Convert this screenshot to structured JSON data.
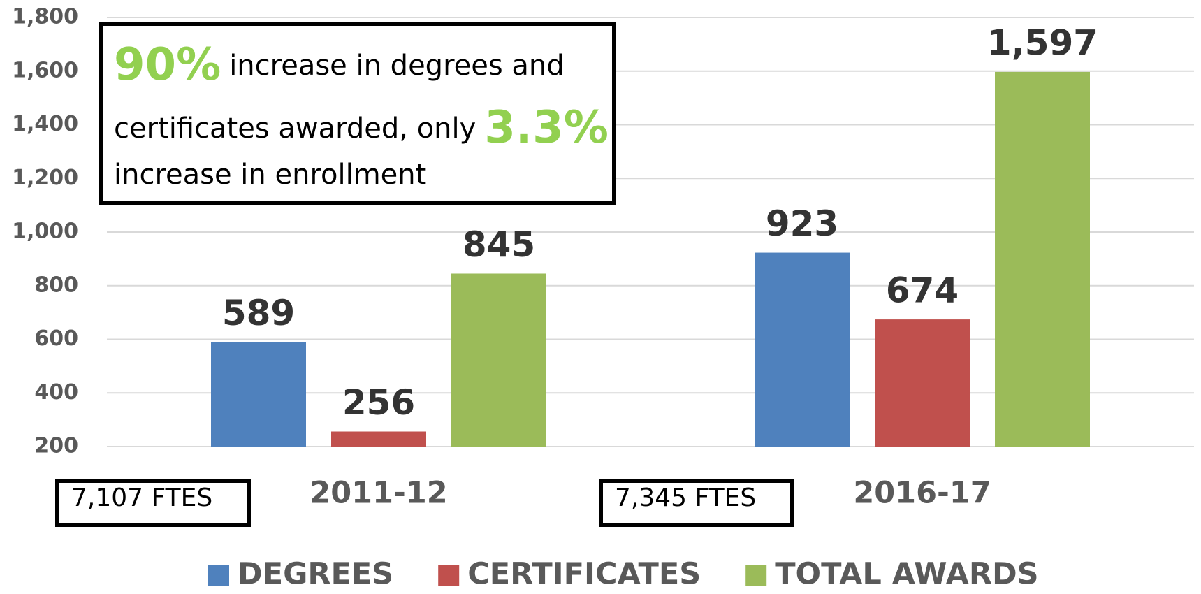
{
  "chart_data": {
    "type": "bar",
    "categories": [
      "2011-12",
      "2016-17"
    ],
    "category_notes": [
      "7,107 FTES",
      "7,345 FTES"
    ],
    "series": [
      {
        "name": "DEGREES",
        "color": "#4f81bd",
        "values": [
          589,
          923
        ]
      },
      {
        "name": "CERTIFICATES",
        "color": "#c0504d",
        "values": [
          256,
          674
        ]
      },
      {
        "name": "TOTAL AWARDS",
        "color": "#9bbb59",
        "values": [
          845,
          1597
        ],
        "value_labels": [
          "845",
          "1,597"
        ]
      }
    ],
    "ylim": [
      200,
      1800
    ],
    "yticks": [
      200,
      400,
      600,
      800,
      {
        "value": 1000,
        "label": "1,000"
      },
      {
        "value": 1200,
        "label": "1,200"
      },
      {
        "value": 1400,
        "label": "1,400"
      },
      {
        "value": 1600,
        "label": "1,600"
      },
      {
        "value": 1800,
        "label": "1,800"
      }
    ],
    "grid": true,
    "legend": "bottom",
    "annotation": {
      "highlight_color": "#92d050",
      "lines": [
        [
          {
            "text": "90%",
            "highlight": true
          },
          {
            "text": "increase in degrees and"
          }
        ],
        [
          {
            "text": "certificates awarded, only"
          },
          {
            "text": "3.3%",
            "highlight": true
          }
        ],
        [
          {
            "text": "increase in enrollment"
          }
        ]
      ]
    }
  }
}
